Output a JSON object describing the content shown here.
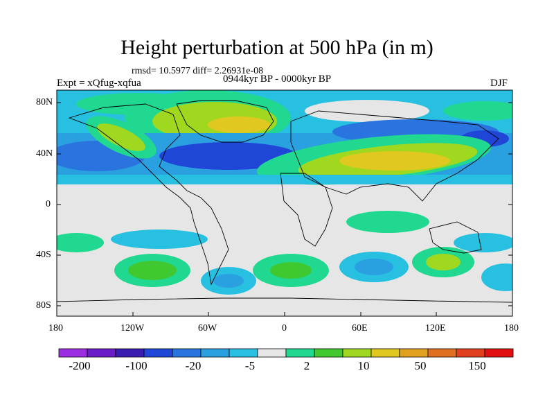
{
  "title": "Height perturbation at 500 hPa (in m)",
  "stats": "rmsd= 10.5977 diff= 2.26931e-08",
  "left_label": "Expt = xQfug-xqfua",
  "center_label": "0944kyr BP - 0000kyr BP",
  "season": "DJF",
  "lat_ticks": [
    "80N",
    "40N",
    "0",
    "40S",
    "80S"
  ],
  "lon_ticks": [
    "180",
    "120W",
    "60W",
    "0",
    "60E",
    "120E",
    "180"
  ],
  "colorbar": {
    "colors": [
      "#9a2ee0",
      "#6a1cc8",
      "#3a1cb0",
      "#2046d8",
      "#2a74e0",
      "#2aa0e0",
      "#28c0e0",
      "#e6e6e6",
      "#20d890",
      "#40c830",
      "#a0d820",
      "#e0c820",
      "#e0a020",
      "#e07020",
      "#e04020",
      "#e01010"
    ],
    "labels": [
      "-200",
      "-100",
      "-20",
      "-5",
      "2",
      "10",
      "50",
      "150"
    ]
  }
}
